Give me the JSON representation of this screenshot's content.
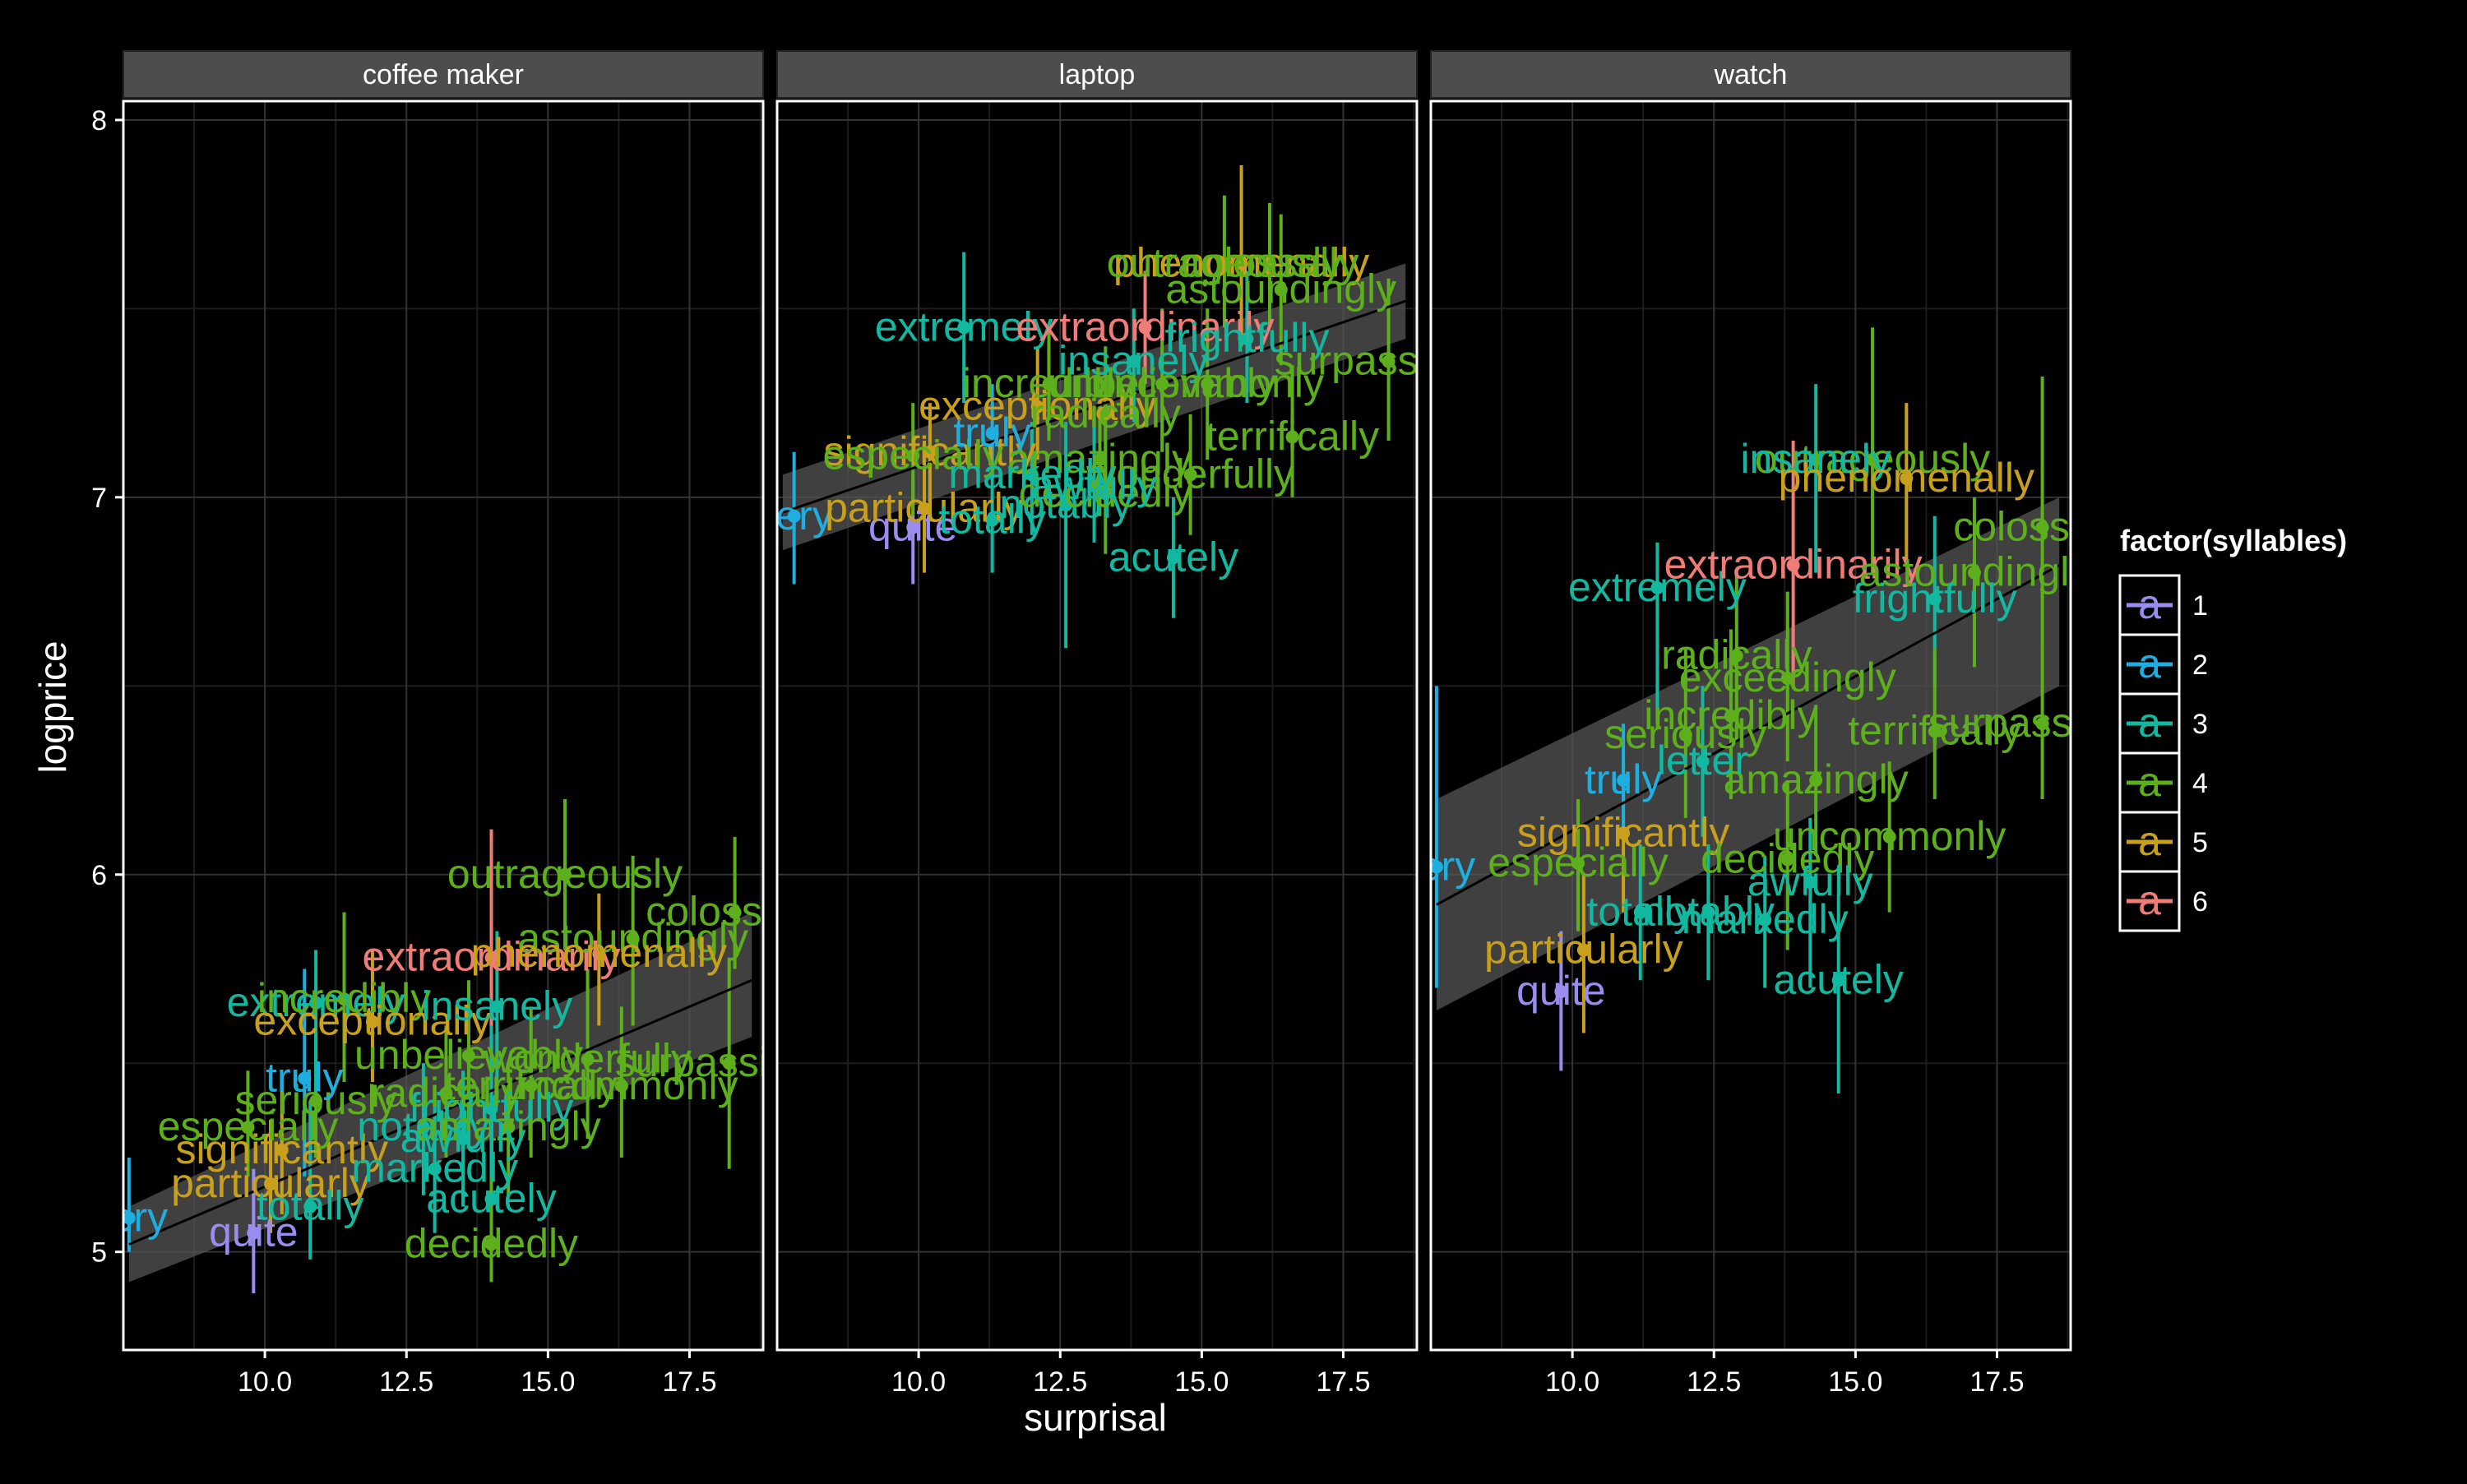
{
  "chart_data": {
    "type": "scatter",
    "xlabel": "surprisal",
    "ylabel": "logprice",
    "xlim": [
      7.5,
      18.8
    ],
    "ylim": [
      4.74,
      8.05
    ],
    "x_ticks": [
      10.0,
      12.5,
      15.0,
      17.5
    ],
    "x_tick_labels": [
      "10.0",
      "12.5",
      "15.0",
      "17.5"
    ],
    "y_ticks": [
      5,
      6,
      7,
      8
    ],
    "y_tick_labels": [
      "5",
      "6",
      "7",
      "8"
    ],
    "grid": true,
    "legend": {
      "title": "factor(syllables)",
      "placement": "right",
      "glyph": "a",
      "entries": [
        {
          "label": "1",
          "color": "#9B8CF0"
        },
        {
          "label": "2",
          "color": "#1EAEE0"
        },
        {
          "label": "3",
          "color": "#12B9A0"
        },
        {
          "label": "4",
          "color": "#5DAF1C"
        },
        {
          "label": "5",
          "color": "#C9A01C"
        },
        {
          "label": "6",
          "color": "#F07C78"
        }
      ]
    },
    "facets": [
      {
        "title": "coffee maker",
        "trend": {
          "x0": 7.6,
          "y0": 5.02,
          "x1": 18.6,
          "y1": 5.72,
          "band_lo": [
            5.12,
            5.57
          ],
          "band_hi": [
            4.92,
            5.9
          ]
        },
        "points": [
          {
            "word": "very",
            "syll": 2,
            "x": 7.6,
            "y": 5.09,
            "lo": 5.0,
            "hi": 5.25
          },
          {
            "word": "quite",
            "syll": 1,
            "x": 9.8,
            "y": 5.05,
            "lo": 4.89,
            "hi": 5.22
          },
          {
            "word": "particularly",
            "syll": 5,
            "x": 10.1,
            "y": 5.18,
            "lo": 5.05,
            "hi": 5.35
          },
          {
            "word": "totally",
            "syll": 3,
            "x": 10.8,
            "y": 5.12,
            "lo": 4.98,
            "hi": 5.4
          },
          {
            "word": "significantly",
            "syll": 5,
            "x": 10.3,
            "y": 5.27,
            "lo": 5.1,
            "hi": 5.45
          },
          {
            "word": "especially",
            "syll": 4,
            "x": 9.7,
            "y": 5.33,
            "lo": 5.2,
            "hi": 5.48
          },
          {
            "word": "seriously",
            "syll": 4,
            "x": 10.9,
            "y": 5.4,
            "lo": 5.25,
            "hi": 5.6
          },
          {
            "word": "truly",
            "syll": 2,
            "x": 10.7,
            "y": 5.46,
            "lo": 5.2,
            "hi": 5.75
          },
          {
            "word": "extremely",
            "syll": 3,
            "x": 10.9,
            "y": 5.66,
            "lo": 5.4,
            "hi": 5.8
          },
          {
            "word": "incredibly",
            "syll": 4,
            "x": 11.4,
            "y": 5.67,
            "lo": 5.45,
            "hi": 5.9
          },
          {
            "word": "exceptionally",
            "syll": 5,
            "x": 11.9,
            "y": 5.61,
            "lo": 5.45,
            "hi": 5.8
          },
          {
            "word": "extraordinarily",
            "syll": 6,
            "x": 14.0,
            "y": 5.78,
            "lo": 5.55,
            "hi": 6.12
          },
          {
            "word": "outrageously",
            "syll": 4,
            "x": 15.3,
            "y": 6.0,
            "lo": 5.8,
            "hi": 6.2
          },
          {
            "word": "astoundingly",
            "syll": 4,
            "x": 16.5,
            "y": 5.83,
            "lo": 5.6,
            "hi": 6.05
          },
          {
            "word": "phenomenally",
            "syll": 5,
            "x": 15.9,
            "y": 5.79,
            "lo": 5.6,
            "hi": 5.95
          },
          {
            "word": "colossally",
            "syll": 4,
            "x": 18.3,
            "y": 5.9,
            "lo": 5.75,
            "hi": 6.1
          },
          {
            "word": "insanely",
            "syll": 3,
            "x": 14.1,
            "y": 5.65,
            "lo": 5.45,
            "hi": 5.85
          },
          {
            "word": "unbelievably",
            "syll": 4,
            "x": 13.6,
            "y": 5.52,
            "lo": 5.3,
            "hi": 5.72
          },
          {
            "word": "wonderfully",
            "syll": 4,
            "x": 15.7,
            "y": 5.51,
            "lo": 5.3,
            "hi": 5.75
          },
          {
            "word": "uncommonly",
            "syll": 4,
            "x": 16.3,
            "y": 5.44,
            "lo": 5.25,
            "hi": 5.65
          },
          {
            "word": "surpassingly",
            "syll": 4,
            "x": 18.2,
            "y": 5.5,
            "lo": 5.22,
            "hi": 5.78
          },
          {
            "word": "terrifically",
            "syll": 4,
            "x": 14.7,
            "y": 5.44,
            "lo": 5.25,
            "hi": 5.65
          },
          {
            "word": "frightfully",
            "syll": 3,
            "x": 14.0,
            "y": 5.38,
            "lo": 5.2,
            "hi": 5.6
          },
          {
            "word": "radically",
            "syll": 4,
            "x": 13.2,
            "y": 5.42,
            "lo": 5.25,
            "hi": 5.6
          },
          {
            "word": "notably",
            "syll": 3,
            "x": 12.8,
            "y": 5.33,
            "lo": 5.15,
            "hi": 5.5
          },
          {
            "word": "amazingly",
            "syll": 4,
            "x": 14.3,
            "y": 5.33,
            "lo": 5.15,
            "hi": 5.5
          },
          {
            "word": "markedly",
            "syll": 3,
            "x": 13.0,
            "y": 5.22,
            "lo": 5.05,
            "hi": 5.4
          },
          {
            "word": "acutely",
            "syll": 3,
            "x": 14.0,
            "y": 5.14,
            "lo": 4.95,
            "hi": 5.32
          },
          {
            "word": "decidedly",
            "syll": 4,
            "x": 14.0,
            "y": 5.02,
            "lo": 4.92,
            "hi": 5.2
          },
          {
            "word": "awfully",
            "syll": 3,
            "x": 13.5,
            "y": 5.3,
            "lo": 5.12,
            "hi": 5.48
          }
        ]
      },
      {
        "title": "laptop",
        "trend": {
          "x0": 7.6,
          "y0": 6.96,
          "x1": 18.6,
          "y1": 7.52,
          "band_lo": [
            7.06,
            7.42
          ],
          "band_hi": [
            6.86,
            7.62
          ]
        },
        "points": [
          {
            "word": "very",
            "syll": 2,
            "x": 7.8,
            "y": 6.95,
            "lo": 6.77,
            "hi": 7.12
          },
          {
            "word": "quite",
            "syll": 1,
            "x": 9.9,
            "y": 6.92,
            "lo": 6.77,
            "hi": 7.05
          },
          {
            "word": "particularly",
            "syll": 5,
            "x": 10.1,
            "y": 6.97,
            "lo": 6.8,
            "hi": 7.15
          },
          {
            "word": "totally",
            "syll": 3,
            "x": 11.3,
            "y": 6.94,
            "lo": 6.8,
            "hi": 7.1
          },
          {
            "word": "notably",
            "syll": 3,
            "x": 12.6,
            "y": 6.98,
            "lo": 6.6,
            "hi": 7.2
          },
          {
            "word": "significantly",
            "syll": 5,
            "x": 10.2,
            "y": 7.12,
            "lo": 6.95,
            "hi": 7.25
          },
          {
            "word": "especially",
            "syll": 4,
            "x": 9.9,
            "y": 7.11,
            "lo": 6.95,
            "hi": 7.25
          },
          {
            "word": "truly",
            "syll": 2,
            "x": 11.3,
            "y": 7.17,
            "lo": 7.05,
            "hi": 7.3
          },
          {
            "word": "extremely",
            "syll": 3,
            "x": 10.8,
            "y": 7.45,
            "lo": 7.25,
            "hi": 7.65
          },
          {
            "word": "extraordinarily",
            "syll": 6,
            "x": 14.0,
            "y": 7.45,
            "lo": 7.3,
            "hi": 7.6
          },
          {
            "word": "incredibly",
            "syll": 4,
            "x": 12.3,
            "y": 7.3,
            "lo": 7.15,
            "hi": 7.45
          },
          {
            "word": "exceptionally",
            "syll": 5,
            "x": 12.1,
            "y": 7.24,
            "lo": 7.1,
            "hi": 7.4
          },
          {
            "word": "phenomenally",
            "syll": 5,
            "x": 15.7,
            "y": 7.62,
            "lo": 7.4,
            "hi": 7.88
          },
          {
            "word": "outrageously",
            "syll": 4,
            "x": 15.4,
            "y": 7.62,
            "lo": 7.45,
            "hi": 7.8
          },
          {
            "word": "colossally",
            "syll": 4,
            "x": 16.2,
            "y": 7.62,
            "lo": 7.45,
            "hi": 7.78
          },
          {
            "word": "astoundingly",
            "syll": 4,
            "x": 16.4,
            "y": 7.55,
            "lo": 7.35,
            "hi": 7.75
          },
          {
            "word": "insanely",
            "syll": 3,
            "x": 13.8,
            "y": 7.36,
            "lo": 7.2,
            "hi": 7.5
          },
          {
            "word": "frightfully",
            "syll": 3,
            "x": 15.8,
            "y": 7.42,
            "lo": 7.25,
            "hi": 7.6
          },
          {
            "word": "surpassingly",
            "syll": 4,
            "x": 18.3,
            "y": 7.36,
            "lo": 7.15,
            "hi": 7.58
          },
          {
            "word": "unbelievably",
            "syll": 4,
            "x": 14.3,
            "y": 7.3,
            "lo": 7.12,
            "hi": 7.5
          },
          {
            "word": "uncommonly",
            "syll": 4,
            "x": 15.1,
            "y": 7.3,
            "lo": 7.1,
            "hi": 7.5
          },
          {
            "word": "terrifically",
            "syll": 4,
            "x": 16.6,
            "y": 7.16,
            "lo": 7.0,
            "hi": 7.35
          },
          {
            "word": "radically",
            "syll": 4,
            "x": 13.3,
            "y": 7.22,
            "lo": 7.05,
            "hi": 7.4
          },
          {
            "word": "amazingly",
            "syll": 4,
            "x": 13.2,
            "y": 7.1,
            "lo": 6.95,
            "hi": 7.25
          },
          {
            "word": "wonderfully",
            "syll": 4,
            "x": 14.8,
            "y": 7.06,
            "lo": 6.9,
            "hi": 7.22
          },
          {
            "word": "decidedly",
            "syll": 4,
            "x": 13.3,
            "y": 7.01,
            "lo": 6.85,
            "hi": 7.18
          },
          {
            "word": "awfully",
            "syll": 3,
            "x": 13.1,
            "y": 7.03,
            "lo": 6.88,
            "hi": 7.2
          },
          {
            "word": "acutely",
            "syll": 3,
            "x": 14.5,
            "y": 6.84,
            "lo": 6.68,
            "hi": 7.0
          },
          {
            "word": "markedly",
            "syll": 3,
            "x": 12.0,
            "y": 7.06,
            "lo": 6.9,
            "hi": 7.2
          }
        ]
      },
      {
        "title": "watch",
        "trend": {
          "x0": 7.6,
          "y0": 5.92,
          "x1": 18.6,
          "y1": 6.82,
          "band_lo": [
            6.2,
            6.5
          ],
          "band_hi": [
            5.64,
            7.0
          ]
        },
        "points": [
          {
            "word": "very",
            "syll": 2,
            "x": 7.6,
            "y": 6.02,
            "lo": 5.7,
            "hi": 6.5
          },
          {
            "word": "quite",
            "syll": 1,
            "x": 9.8,
            "y": 5.69,
            "lo": 5.48,
            "hi": 5.85
          },
          {
            "word": "particularly",
            "syll": 5,
            "x": 10.2,
            "y": 5.8,
            "lo": 5.58,
            "hi": 6.0
          },
          {
            "word": "especially",
            "syll": 4,
            "x": 10.1,
            "y": 6.03,
            "lo": 5.85,
            "hi": 6.2
          },
          {
            "word": "significantly",
            "syll": 5,
            "x": 10.9,
            "y": 6.11,
            "lo": 5.9,
            "hi": 6.3
          },
          {
            "word": "truly",
            "syll": 2,
            "x": 10.9,
            "y": 6.25,
            "lo": 6.1,
            "hi": 6.4
          },
          {
            "word": "seriously",
            "syll": 4,
            "x": 12.0,
            "y": 6.37,
            "lo": 6.15,
            "hi": 6.6
          },
          {
            "word": "extremely",
            "syll": 3,
            "x": 11.5,
            "y": 6.76,
            "lo": 6.4,
            "hi": 6.88
          },
          {
            "word": "extraordinarily",
            "syll": 6,
            "x": 13.9,
            "y": 6.82,
            "lo": 6.5,
            "hi": 7.15
          },
          {
            "word": "outrageously",
            "syll": 4,
            "x": 15.3,
            "y": 7.1,
            "lo": 6.8,
            "hi": 7.45
          },
          {
            "word": "insanely",
            "syll": 3,
            "x": 14.3,
            "y": 7.1,
            "lo": 6.8,
            "hi": 7.3
          },
          {
            "word": "phenomenally",
            "syll": 5,
            "x": 15.9,
            "y": 7.05,
            "lo": 6.82,
            "hi": 7.25
          },
          {
            "word": "colossally",
            "syll": 4,
            "x": 18.3,
            "y": 6.92,
            "lo": 6.6,
            "hi": 7.32
          },
          {
            "word": "astoundingly",
            "syll": 4,
            "x": 17.1,
            "y": 6.8,
            "lo": 6.55,
            "hi": 7.0
          },
          {
            "word": "frightfully",
            "syll": 3,
            "x": 16.4,
            "y": 6.73,
            "lo": 6.5,
            "hi": 6.95
          },
          {
            "word": "radically",
            "syll": 4,
            "x": 12.9,
            "y": 6.58,
            "lo": 6.35,
            "hi": 6.8
          },
          {
            "word": "exceedingly",
            "syll": 4,
            "x": 13.8,
            "y": 6.52,
            "lo": 6.3,
            "hi": 6.75
          },
          {
            "word": "incredibly",
            "syll": 4,
            "x": 12.8,
            "y": 6.42,
            "lo": 6.2,
            "hi": 6.65
          },
          {
            "word": "terrifically",
            "syll": 4,
            "x": 16.4,
            "y": 6.38,
            "lo": 6.2,
            "hi": 6.6
          },
          {
            "word": "surpassingly",
            "syll": 4,
            "x": 18.3,
            "y": 6.4,
            "lo": 6.2,
            "hi": 6.6
          },
          {
            "word": "amazingly",
            "syll": 4,
            "x": 14.3,
            "y": 6.25,
            "lo": 6.05,
            "hi": 6.45
          },
          {
            "word": "uncommonly",
            "syll": 4,
            "x": 15.6,
            "y": 6.1,
            "lo": 5.9,
            "hi": 6.3
          },
          {
            "word": "decidedly",
            "syll": 4,
            "x": 13.8,
            "y": 6.04,
            "lo": 5.8,
            "hi": 6.25
          },
          {
            "word": "awfully",
            "syll": 3,
            "x": 14.2,
            "y": 5.98,
            "lo": 5.7,
            "hi": 6.15
          },
          {
            "word": "totally",
            "syll": 3,
            "x": 11.2,
            "y": 5.9,
            "lo": 5.72,
            "hi": 6.08
          },
          {
            "word": "notably",
            "syll": 3,
            "x": 12.4,
            "y": 5.9,
            "lo": 5.72,
            "hi": 6.08
          },
          {
            "word": "markedly",
            "syll": 3,
            "x": 13.4,
            "y": 5.88,
            "lo": 5.7,
            "hi": 6.05
          },
          {
            "word": "acutely",
            "syll": 3,
            "x": 14.7,
            "y": 5.72,
            "lo": 5.42,
            "hi": 5.95
          },
          {
            "word": "letter",
            "syll": 3,
            "x": 12.3,
            "y": 6.3,
            "lo": 6.1,
            "hi": 6.5
          }
        ]
      }
    ]
  }
}
